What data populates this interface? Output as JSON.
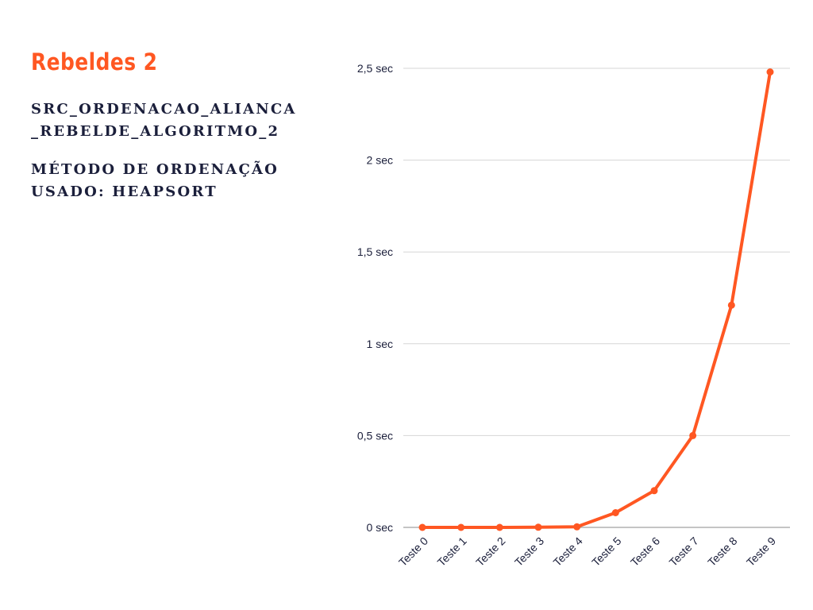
{
  "colors": {
    "accent": "#ff5722",
    "heading_text": "#1b1f3b",
    "axis_text": "#1b1f3b",
    "gridline": "#d5d5d5"
  },
  "header": {
    "title": "Rebeldes 2",
    "source_name": "SRC_ORDENACAO_ALIANCA_REBELDE_ALGORITMO_2",
    "method": "MÉTODO DE ORDENAÇÃO USADO: HEAPSORT"
  },
  "chart_data": {
    "type": "line",
    "title": "",
    "xlabel": "",
    "ylabel": "",
    "categories": [
      "Teste 0",
      "Teste 1",
      "Teste 2",
      "Teste 3",
      "Teste 4",
      "Teste 5",
      "Teste 6",
      "Teste 7",
      "Teste 8",
      "Teste 9"
    ],
    "series": [
      {
        "values": [
          0.0,
          0.0,
          0.0,
          0.001,
          0.003,
          0.08,
          0.2,
          0.5,
          1.21,
          2.48
        ]
      }
    ],
    "y_ticks": [
      0,
      0.5,
      1,
      1.5,
      2,
      2.5
    ],
    "y_tick_labels": [
      "0 sec",
      "0,5 sec",
      "1 sec",
      "1,5 sec",
      "2 sec",
      "2,5 sec"
    ],
    "ylim": [
      0,
      2.5
    ],
    "grid": true,
    "legend": "none"
  }
}
